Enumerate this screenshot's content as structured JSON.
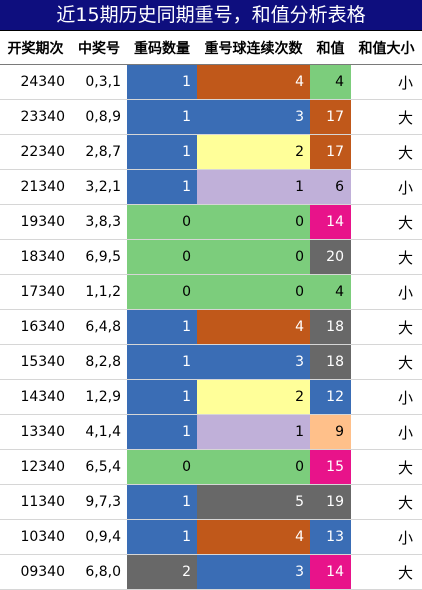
{
  "title": "近15期历史同期重号，和值分析表格",
  "headers": [
    "开奖期次",
    "中奖号",
    "重码数量",
    "重号球连续次数",
    "和值",
    "和值大小"
  ],
  "rows": [
    {
      "period": "24340",
      "numbers": "0,3,1",
      "repeat_count": "1",
      "repeat_streak": "4",
      "sum": "4",
      "size": "小",
      "repeat_color": "#3a6db5",
      "streak_color": "#c0581a",
      "sum_color": "#7ccd7c"
    },
    {
      "period": "23340",
      "numbers": "0,8,9",
      "repeat_count": "1",
      "repeat_streak": "3",
      "sum": "17",
      "size": "大",
      "repeat_color": "#3a6db5",
      "streak_color": "#3a6db5",
      "sum_color": "#c0581a"
    },
    {
      "period": "22340",
      "numbers": "2,8,7",
      "repeat_count": "1",
      "repeat_streak": "2",
      "sum": "17",
      "size": "大",
      "repeat_color": "#3a6db5",
      "streak_color": "#ffff99",
      "sum_color": "#c0581a"
    },
    {
      "period": "21340",
      "numbers": "3,2,1",
      "repeat_count": "1",
      "repeat_streak": "1",
      "sum": "6",
      "size": "小",
      "repeat_color": "#3a6db5",
      "streak_color": "#c0b0d9",
      "sum_color": "#c0b0d9"
    },
    {
      "period": "19340",
      "numbers": "3,8,3",
      "repeat_count": "0",
      "repeat_streak": "0",
      "sum": "14",
      "size": "大",
      "repeat_color": "#7ccd7c",
      "streak_color": "#7ccd7c",
      "sum_color": "#e8138a"
    },
    {
      "period": "18340",
      "numbers": "6,9,5",
      "repeat_count": "0",
      "repeat_streak": "0",
      "sum": "20",
      "size": "大",
      "repeat_color": "#7ccd7c",
      "streak_color": "#7ccd7c",
      "sum_color": "#686868"
    },
    {
      "period": "17340",
      "numbers": "1,1,2",
      "repeat_count": "0",
      "repeat_streak": "0",
      "sum": "4",
      "size": "小",
      "repeat_color": "#7ccd7c",
      "streak_color": "#7ccd7c",
      "sum_color": "#7ccd7c"
    },
    {
      "period": "16340",
      "numbers": "6,4,8",
      "repeat_count": "1",
      "repeat_streak": "4",
      "sum": "18",
      "size": "大",
      "repeat_color": "#3a6db5",
      "streak_color": "#c0581a",
      "sum_color": "#686868"
    },
    {
      "period": "15340",
      "numbers": "8,2,8",
      "repeat_count": "1",
      "repeat_streak": "3",
      "sum": "18",
      "size": "大",
      "repeat_color": "#3a6db5",
      "streak_color": "#3a6db5",
      "sum_color": "#686868"
    },
    {
      "period": "14340",
      "numbers": "1,2,9",
      "repeat_count": "1",
      "repeat_streak": "2",
      "sum": "12",
      "size": "小",
      "repeat_color": "#3a6db5",
      "streak_color": "#ffff99",
      "sum_color": "#3a6db5"
    },
    {
      "period": "13340",
      "numbers": "4,1,4",
      "repeat_count": "1",
      "repeat_streak": "1",
      "sum": "9",
      "size": "小",
      "repeat_color": "#3a6db5",
      "streak_color": "#c0b0d9",
      "sum_color": "#ffc08a"
    },
    {
      "period": "12340",
      "numbers": "6,5,4",
      "repeat_count": "0",
      "repeat_streak": "0",
      "sum": "15",
      "size": "大",
      "repeat_color": "#7ccd7c",
      "streak_color": "#7ccd7c",
      "sum_color": "#e8138a"
    },
    {
      "period": "11340",
      "numbers": "9,7,3",
      "repeat_count": "1",
      "repeat_streak": "5",
      "sum": "19",
      "size": "大",
      "repeat_color": "#3a6db5",
      "streak_color": "#686868",
      "sum_color": "#686868"
    },
    {
      "period": "10340",
      "numbers": "0,9,4",
      "repeat_count": "1",
      "repeat_streak": "4",
      "sum": "13",
      "size": "小",
      "repeat_color": "#3a6db5",
      "streak_color": "#c0581a",
      "sum_color": "#3a6db5"
    },
    {
      "period": "09340",
      "numbers": "6,8,0",
      "repeat_count": "2",
      "repeat_streak": "3",
      "sum": "14",
      "size": "大",
      "repeat_color": "#686868",
      "streak_color": "#3a6db5",
      "sum_color": "#e8138a"
    }
  ]
}
